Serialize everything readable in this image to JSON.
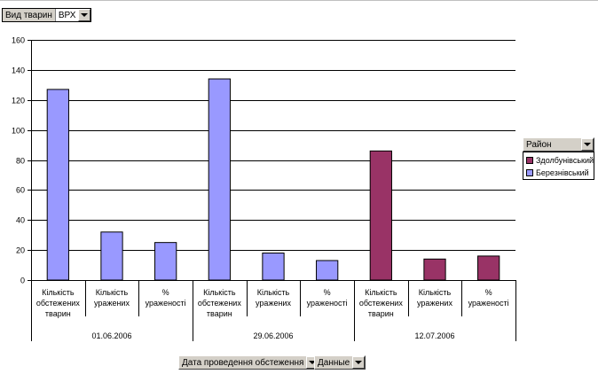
{
  "page_filter": {
    "label": "Вид тварин",
    "value": "ВРХ"
  },
  "series_field": {
    "label": "Район"
  },
  "category_field": {
    "label": "Дата проведення обстеження"
  },
  "data_field": {
    "label": "Данные"
  },
  "chart_data": {
    "type": "bar",
    "ylim": [
      0,
      160
    ],
    "yticks": [
      0,
      20,
      40,
      60,
      80,
      100,
      120,
      140,
      160
    ],
    "grid": true,
    "legend_position": "right",
    "groups": [
      {
        "label": "01.06.2006",
        "categories": [
          "Кількість обстежених тварин",
          "Кількість уражених",
          "% ураженості"
        ]
      },
      {
        "label": "29.06.2006",
        "categories": [
          "Кількість обстежених тварин",
          "Кількість уражених",
          "% ураженості"
        ]
      },
      {
        "label": "12.07.2006",
        "categories": [
          "Кількість обстежених тварин",
          "Кількість уражених",
          "% ураженості"
        ]
      }
    ],
    "series": [
      {
        "name": "Здолбунівський",
        "color": "#993366",
        "values": [
          null,
          null,
          null,
          null,
          null,
          null,
          86,
          14,
          16
        ]
      },
      {
        "name": "Березнівський",
        "color": "#9999ff",
        "values": [
          127,
          32,
          25,
          134,
          18,
          13,
          null,
          null,
          null
        ]
      }
    ]
  }
}
